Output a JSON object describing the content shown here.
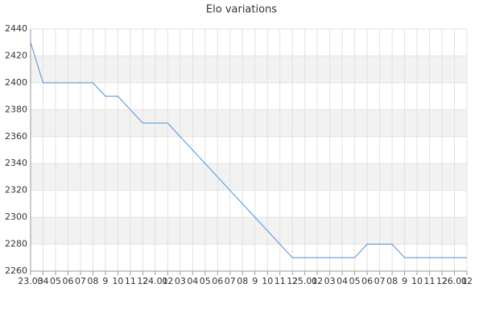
{
  "chart_data": {
    "type": "line",
    "title": "Elo variations",
    "categories": [
      "23.03",
      "04",
      "05",
      "06",
      "07",
      "08",
      "9",
      "10",
      "11",
      "12",
      "24.01",
      "02",
      "03",
      "04",
      "05",
      "06",
      "07",
      "08",
      "9",
      "10",
      "11",
      "12",
      "25.01",
      "02",
      "03",
      "04",
      "05",
      "06",
      "07",
      "08",
      "9",
      "10",
      "11",
      "12",
      "26.01",
      "02"
    ],
    "values": [
      2430,
      2400,
      2400,
      2400,
      2400,
      2400,
      2390,
      2390,
      2380,
      2370,
      2370,
      2370,
      2360,
      2350,
      2340,
      2330,
      2320,
      2310,
      2300,
      2290,
      2280,
      2270,
      2270,
      2270,
      2270,
      2270,
      2270,
      2280,
      2280,
      2280,
      2270,
      2270,
      2270,
      2270,
      2270,
      2270
    ],
    "color": "#4a90d9",
    "ylim": [
      2260,
      2440
    ],
    "yticks": [
      2260,
      2280,
      2300,
      2320,
      2340,
      2360,
      2380,
      2400,
      2420,
      2440
    ],
    "grid": true
  }
}
